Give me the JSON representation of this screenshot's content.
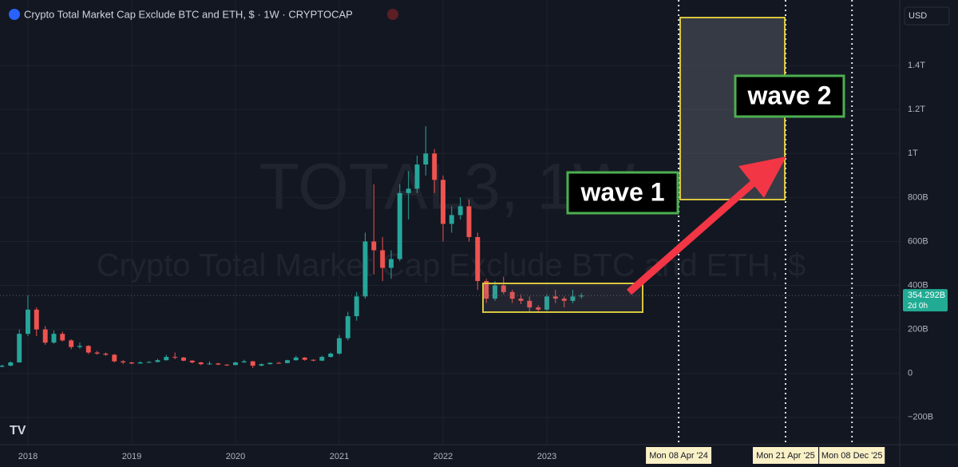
{
  "chart_data": {
    "type": "candlestick",
    "title": "Crypto Total Market Cap Exclude BTC and ETH, $ · 1W · CRYPTOCAP",
    "watermark_symbol": "TOTAL3, 1W",
    "watermark_name": "Crypto Total Market Cap Exclude BTC and ETH, $",
    "currency": "USD",
    "up_color": "#26a69a",
    "down_color": "#ef5350",
    "x": [
      2017.75,
      2017.833,
      2017.917,
      2018.0,
      2018.083,
      2018.167,
      2018.25,
      2018.333,
      2018.417,
      2018.5,
      2018.583,
      2018.667,
      2018.75,
      2018.833,
      2018.917,
      2019.0,
      2019.083,
      2019.167,
      2019.25,
      2019.333,
      2019.417,
      2019.5,
      2019.583,
      2019.667,
      2019.75,
      2019.833,
      2019.917,
      2020.0,
      2020.083,
      2020.167,
      2020.25,
      2020.333,
      2020.417,
      2020.5,
      2020.583,
      2020.667,
      2020.75,
      2020.833,
      2020.917,
      2021.0,
      2021.083,
      2021.167,
      2021.25,
      2021.333,
      2021.417,
      2021.5,
      2021.583,
      2021.667,
      2021.75,
      2021.833,
      2021.917,
      2022.0,
      2022.083,
      2022.167,
      2022.25,
      2022.333,
      2022.417,
      2022.5,
      2022.583,
      2022.667,
      2022.75,
      2022.833,
      2022.917,
      2023.0,
      2023.083,
      2023.167,
      2023.25,
      2023.333
    ],
    "open": [
      30,
      35,
      50,
      180,
      290,
      200,
      140,
      180,
      150,
      120,
      125,
      95,
      90,
      85,
      55,
      50,
      45,
      50,
      52,
      60,
      75,
      72,
      58,
      50,
      42,
      45,
      40,
      38,
      50,
      55,
      35,
      42,
      48,
      47,
      60,
      72,
      62,
      58,
      75,
      90,
      160,
      260,
      350,
      600,
      560,
      480,
      520,
      820,
      840,
      950,
      1000,
      880,
      680,
      720,
      760,
      620,
      420,
      340,
      400,
      370,
      340,
      330,
      300,
      290,
      350,
      340,
      330,
      350
    ],
    "high": [
      40,
      55,
      200,
      355,
      300,
      215,
      195,
      190,
      155,
      140,
      128,
      102,
      95,
      88,
      60,
      52,
      55,
      56,
      66,
      85,
      95,
      75,
      60,
      52,
      55,
      48,
      42,
      52,
      62,
      57,
      45,
      50,
      52,
      62,
      80,
      74,
      64,
      80,
      95,
      175,
      280,
      370,
      640,
      860,
      620,
      560,
      860,
      920,
      990,
      1124,
      1020,
      900,
      760,
      800,
      790,
      640,
      430,
      420,
      440,
      380,
      360,
      350,
      310,
      360,
      380,
      350,
      380,
      365
    ],
    "low": [
      28,
      33,
      48,
      170,
      170,
      130,
      135,
      145,
      110,
      112,
      88,
      85,
      80,
      50,
      42,
      42,
      44,
      48,
      50,
      58,
      65,
      55,
      45,
      38,
      38,
      38,
      34,
      37,
      48,
      25,
      33,
      40,
      44,
      46,
      58,
      58,
      55,
      56,
      72,
      85,
      150,
      240,
      340,
      450,
      420,
      430,
      510,
      700,
      820,
      900,
      820,
      600,
      640,
      700,
      600,
      380,
      320,
      330,
      360,
      320,
      315,
      280,
      280,
      285,
      320,
      300,
      320,
      340
    ],
    "close": [
      35,
      50,
      180,
      290,
      200,
      140,
      180,
      150,
      120,
      125,
      95,
      90,
      85,
      55,
      50,
      45,
      50,
      52,
      60,
      75,
      72,
      58,
      50,
      42,
      45,
      40,
      38,
      50,
      55,
      35,
      42,
      48,
      47,
      60,
      72,
      62,
      58,
      75,
      90,
      160,
      260,
      350,
      600,
      560,
      480,
      520,
      820,
      840,
      950,
      1000,
      880,
      680,
      720,
      760,
      620,
      420,
      340,
      400,
      370,
      340,
      330,
      300,
      290,
      350,
      340,
      330,
      350,
      354.292
    ],
    "last_value_label": "354.292B",
    "countdown": "2d 0h",
    "xlim": [
      2017.731,
      2026.4
    ],
    "ylim": [
      -324,
      1698
    ],
    "xticks": [
      2018,
      2019,
      2020,
      2021,
      2022,
      2023
    ],
    "yticks": [
      {
        "value": -200,
        "label": "−200B"
      },
      0,
      {
        "value": 200,
        "label": "200B"
      },
      {
        "value": 400,
        "label": "400B"
      },
      {
        "value": 600,
        "label": "600B"
      },
      {
        "value": 800,
        "label": "800B"
      },
      {
        "value": 1000,
        "label": "1T"
      },
      {
        "value": 1200,
        "label": "1.2T"
      },
      {
        "value": 1400,
        "label": "1.4T"
      }
    ],
    "date_markers": [
      {
        "value": 2024.27,
        "label": "Mon 08 Apr '24"
      },
      {
        "value": 2025.3,
        "label": "Mon 21 Apr '25"
      },
      {
        "value": 2025.94,
        "label": "Mon 08 Dec '25"
      }
    ],
    "annotations": [
      "wave 1",
      "wave 2"
    ]
  }
}
